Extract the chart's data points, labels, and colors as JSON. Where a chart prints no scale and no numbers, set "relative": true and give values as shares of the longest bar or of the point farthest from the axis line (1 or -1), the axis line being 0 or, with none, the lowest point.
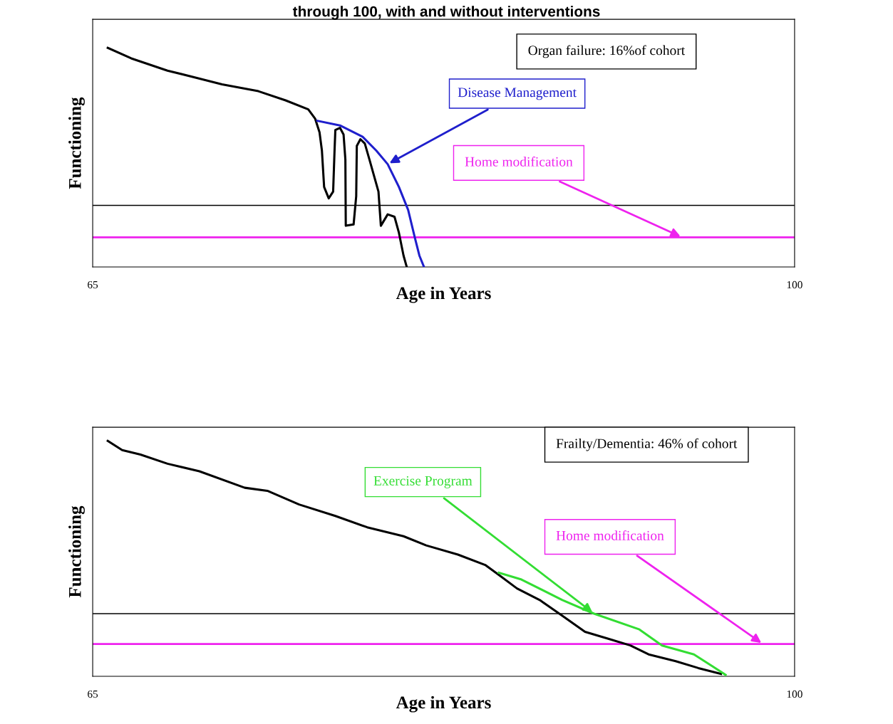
{
  "chart_data": [
    {
      "type": "line",
      "title": "through 100, with and without interventions",
      "xlabel": "Age in Years",
      "ylabel": "Functioning",
      "relative": true,
      "xlim": [
        65,
        100
      ],
      "xticks": [
        65,
        100
      ],
      "grid": false,
      "marker": "none",
      "line_style": "solid",
      "series": [
        {
          "color": "#000000",
          "x": [
            65.75,
            66.92,
            68.73,
            70.09,
            71.45,
            73.26,
            74.62,
            75.75,
            76.09,
            76.31,
            76.43,
            76.54,
            76.77,
            76.99,
            77.06,
            77.1,
            77.33,
            77.51,
            77.6,
            77.62,
            78.01,
            78.14,
            78.17,
            78.35,
            78.57,
            78.8,
            79.25,
            79.37,
            79.71,
            80.05,
            80.27,
            80.5,
            80.66
          ],
          "values": [
            1.0,
            0.952,
            0.896,
            0.865,
            0.833,
            0.802,
            0.76,
            0.719,
            0.677,
            0.615,
            0.531,
            0.365,
            0.313,
            0.344,
            0.531,
            0.625,
            0.635,
            0.604,
            0.49,
            0.188,
            0.194,
            0.323,
            0.552,
            0.583,
            0.563,
            0.49,
            0.344,
            0.188,
            0.24,
            0.229,
            0.156,
            0.052,
            0.0
          ]
        },
        {
          "name": "Disease Management",
          "color": "#1f1fcc",
          "x": [
            76.2,
            77.33,
            78.46,
            79.14,
            79.71,
            80.27,
            80.73,
            81.06,
            81.29,
            81.52
          ],
          "values": [
            0.667,
            0.646,
            0.594,
            0.531,
            0.469,
            0.365,
            0.26,
            0.135,
            0.052,
            0.0
          ]
        }
      ],
      "ref_lines": [
        {
          "axis": "y",
          "value": 0.281,
          "color": "#000000"
        },
        {
          "axis": "y",
          "value": 0.135,
          "color": "#ee22ee",
          "label": "Home modification"
        }
      ],
      "annotations": [
        "Organ failure: 16%of cohort"
      ]
    },
    {
      "type": "line",
      "xlabel": "Age in Years",
      "ylabel": "Functioning",
      "relative": true,
      "xlim": [
        65,
        100
      ],
      "xticks": [
        65,
        100
      ],
      "grid": false,
      "marker": "none",
      "line_style": "solid",
      "series": [
        {
          "color": "#000000",
          "x": [
            65.75,
            66.47,
            67.38,
            68.73,
            70.32,
            72.58,
            73.71,
            75.29,
            77.1,
            78.69,
            80.5,
            81.63,
            83.21,
            84.57,
            85.25,
            86.16,
            87.29,
            88.42,
            89.55,
            90.68,
            91.81,
            92.72,
            94.07,
            95.2,
            96.33
          ],
          "values": [
            1.0,
            0.961,
            0.942,
            0.903,
            0.871,
            0.801,
            0.788,
            0.73,
            0.681,
            0.633,
            0.595,
            0.556,
            0.517,
            0.473,
            0.431,
            0.373,
            0.324,
            0.257,
            0.189,
            0.16,
            0.131,
            0.093,
            0.064,
            0.035,
            0.01
          ]
        },
        {
          "name": "Exercise Program",
          "color": "#33dd33",
          "x": [
            85.25,
            86.38,
            88.42,
            90.0,
            92.26,
            93.39,
            94.98,
            95.88,
            96.56
          ],
          "values": [
            0.44,
            0.411,
            0.324,
            0.266,
            0.199,
            0.131,
            0.093,
            0.044,
            0.006
          ]
        }
      ],
      "ref_lines": [
        {
          "axis": "y",
          "value": 0.266,
          "color": "#000000"
        },
        {
          "axis": "y",
          "value": 0.137,
          "color": "#ee22ee",
          "label": "Home modification"
        }
      ],
      "annotations": [
        "Frailty/Dementia: 46% of cohort"
      ]
    }
  ]
}
